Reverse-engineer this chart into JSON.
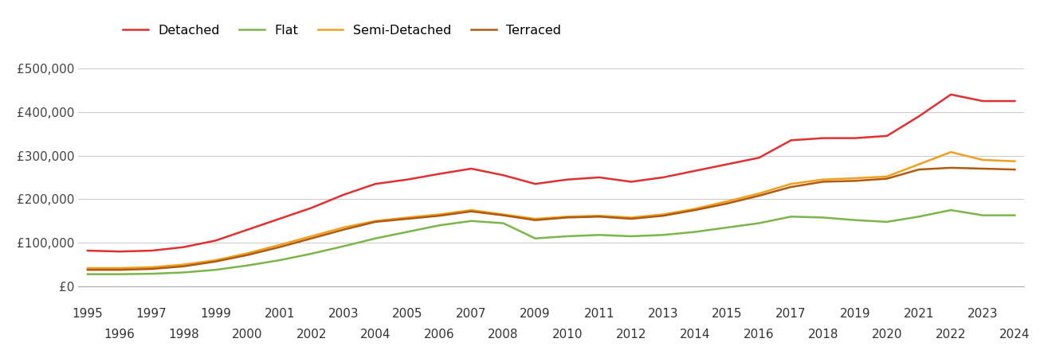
{
  "years": [
    1995,
    1996,
    1997,
    1998,
    1999,
    2000,
    2001,
    2002,
    2003,
    2004,
    2005,
    2006,
    2007,
    2008,
    2009,
    2010,
    2011,
    2012,
    2013,
    2014,
    2015,
    2016,
    2017,
    2018,
    2019,
    2020,
    2021,
    2022,
    2023,
    2024
  ],
  "detached": [
    82000,
    80000,
    82000,
    90000,
    105000,
    130000,
    155000,
    180000,
    210000,
    235000,
    245000,
    258000,
    270000,
    255000,
    235000,
    245000,
    250000,
    240000,
    250000,
    265000,
    280000,
    295000,
    335000,
    340000,
    340000,
    345000,
    390000,
    440000,
    425000,
    425000
  ],
  "flat": [
    28000,
    28000,
    29000,
    32000,
    38000,
    48000,
    60000,
    75000,
    92000,
    110000,
    125000,
    140000,
    150000,
    145000,
    110000,
    115000,
    118000,
    115000,
    118000,
    125000,
    135000,
    145000,
    160000,
    158000,
    152000,
    148000,
    160000,
    175000,
    163000,
    163000
  ],
  "semi_detached": [
    42000,
    42000,
    44000,
    50000,
    60000,
    76000,
    95000,
    115000,
    135000,
    150000,
    158000,
    165000,
    175000,
    165000,
    155000,
    160000,
    162000,
    158000,
    165000,
    178000,
    195000,
    213000,
    235000,
    245000,
    248000,
    252000,
    280000,
    308000,
    290000,
    287000
  ],
  "terraced": [
    38000,
    38000,
    40000,
    46000,
    57000,
    72000,
    90000,
    110000,
    130000,
    148000,
    155000,
    162000,
    172000,
    163000,
    152000,
    158000,
    160000,
    155000,
    162000,
    175000,
    190000,
    208000,
    228000,
    240000,
    242000,
    247000,
    268000,
    272000,
    270000,
    268000
  ],
  "line_colors": {
    "detached": "#e03030",
    "flat": "#7ab648",
    "semi_detached": "#f0a020",
    "terraced": "#b05a10"
  },
  "ylim": [
    0,
    550000
  ],
  "yticks": [
    0,
    100000,
    200000,
    300000,
    400000,
    500000
  ],
  "ytick_labels": [
    "£0",
    "£100,000",
    "£200,000",
    "£300,000",
    "£400,000",
    "£500,000"
  ],
  "background_color": "#ffffff",
  "grid_color": "#cccccc",
  "line_width": 1.8,
  "legend_labels": [
    "Detached",
    "Flat",
    "Semi-Detached",
    "Terraced"
  ],
  "tick_fontsize": 11,
  "legend_fontsize": 11.5
}
